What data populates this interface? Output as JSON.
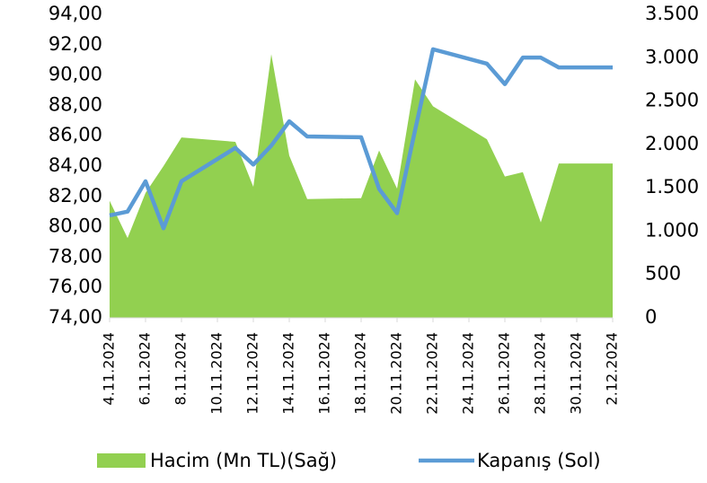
{
  "chart_data": {
    "type": "area-line",
    "x": [
      "4.11.2024",
      "5.11.2024",
      "6.11.2024",
      "7.11.2024",
      "8.11.2024",
      "11.11.2024",
      "12.11.2024",
      "13.11.2024",
      "14.11.2024",
      "15.11.2024",
      "18.11.2024",
      "19.11.2024",
      "20.11.2024",
      "21.11.2024",
      "22.11.2024",
      "25.11.2024",
      "26.11.2024",
      "27.11.2024",
      "28.11.2024",
      "29.11.2024",
      "2.12.2024"
    ],
    "xlim": [
      "4.11.2024",
      "2.12.2024"
    ],
    "xticks": [
      "4.11.2024",
      "6.11.2024",
      "8.11.2024",
      "10.11.2024",
      "12.11.2024",
      "14.11.2024",
      "16.11.2024",
      "18.11.2024",
      "20.11.2024",
      "22.11.2024",
      "24.11.2024",
      "26.11.2024",
      "28.11.2024",
      "30.11.2024",
      "2.12.2024"
    ],
    "series": [
      {
        "name": "Hacim (Mn TL)(Sağ)",
        "color": "#92d050",
        "axis": "y2",
        "kind": "area",
        "values": [
          1350,
          920,
          1440,
          1750,
          2080,
          2030,
          1510,
          3040,
          1870,
          1370,
          1380,
          1930,
          1490,
          2750,
          2440,
          2060,
          1630,
          1680,
          1100,
          1780,
          1780
        ]
      },
      {
        "name": "Kapanış (Sol)",
        "color": "#5b9bd5",
        "kind": "line",
        "values": [
          80.75,
          81.0,
          83.0,
          79.9,
          83.0,
          85.2,
          84.1,
          85.35,
          86.95,
          85.95,
          85.9,
          82.5,
          80.9,
          86.35,
          91.7,
          90.75,
          89.4,
          91.15,
          91.15,
          90.5,
          90.5
        ]
      }
    ],
    "ylim": [
      74,
      94
    ],
    "yticks": [
      {
        "value": 74,
        "label": "74,00"
      },
      {
        "value": 76,
        "label": "76,00"
      },
      {
        "value": 78,
        "label": "78,00"
      },
      {
        "value": 80,
        "label": "80,00"
      },
      {
        "value": 82,
        "label": "82,00"
      },
      {
        "value": 84,
        "label": "84,00"
      },
      {
        "value": 86,
        "label": "86,00"
      },
      {
        "value": 88,
        "label": "88,00"
      },
      {
        "value": 90,
        "label": "90,00"
      },
      {
        "value": 92,
        "label": "92,00"
      },
      {
        "value": 94,
        "label": "94,00"
      }
    ],
    "y2lim": [
      0,
      3500
    ],
    "y2ticks": [
      0,
      500,
      {
        "value": 1000,
        "label": "1.000"
      },
      {
        "value": 1500,
        "label": "1.500"
      },
      {
        "value": 2000,
        "label": "2.000"
      },
      {
        "value": 2500,
        "label": "2.500"
      },
      {
        "value": 3000,
        "label": "3.000"
      },
      {
        "value": 3500,
        "label": "3.500"
      }
    ],
    "legend": "bottom"
  }
}
